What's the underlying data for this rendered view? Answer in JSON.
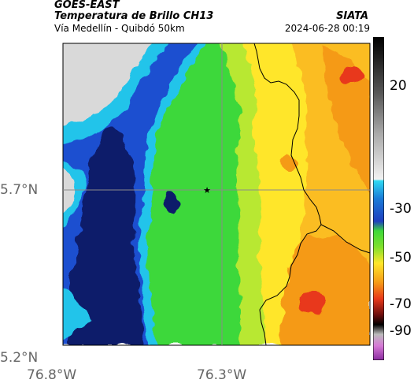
{
  "header": {
    "satellite": "GOES-EAST",
    "product": "Temperatura de Brillo CH13",
    "route": "Vía Medellín - Quibdó 50km",
    "agency": "SIATA",
    "datetime": "2024-06-28 00:19"
  },
  "axes": {
    "lat_labels": [
      "5.7°N",
      "5.2°N"
    ],
    "lon_labels": [
      "76.8°W",
      "76.3°W"
    ]
  },
  "colorbar": {
    "ticks": [
      "20",
      "-30",
      "-50",
      "-70",
      "-90"
    ]
  },
  "marker": {
    "symbol": "★"
  },
  "colors": {
    "cloud_deep": "#0a1a6b",
    "cloud_blue": "#1f4fd0",
    "cloud_cyan": "#22c4ea",
    "warm_green": "#38d633",
    "warm_yellow": "#ffe62a",
    "warm_orange": "#f59a17",
    "hot_red": "#e8391a",
    "clear_gray": "#d9d9d9"
  }
}
